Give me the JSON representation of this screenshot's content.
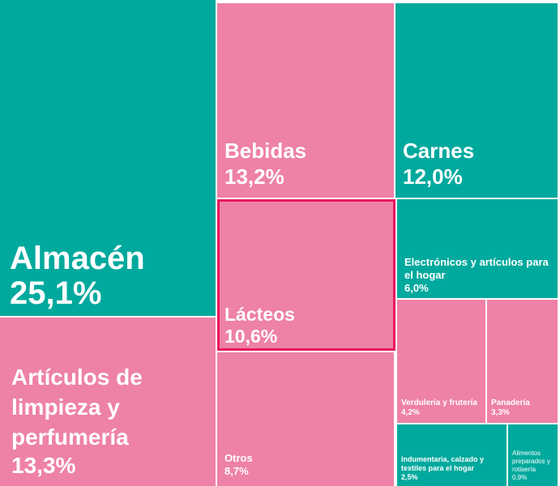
{
  "chart_data": {
    "type": "treemap",
    "title": "",
    "unit": "%",
    "colors": {
      "teal": "#00a99d",
      "pink": "#ee81a8",
      "highlight": "#e8175d"
    },
    "items": [
      {
        "label": "Almacén",
        "value": 25.1,
        "display": "25,1%",
        "color": "teal"
      },
      {
        "label": "Artículos de limpieza y perfumería",
        "value": 13.3,
        "display": "13,3%",
        "color": "pink"
      },
      {
        "label": "Bebidas",
        "value": 13.2,
        "display": "13,2%",
        "color": "pink"
      },
      {
        "label": "Lácteos",
        "value": 10.6,
        "display": "10,6%",
        "color": "pink",
        "highlighted": true
      },
      {
        "label": "Otros",
        "value": 8.7,
        "display": "8,7%",
        "color": "pink"
      },
      {
        "label": "Carnes",
        "value": 12.0,
        "display": "12,0%",
        "color": "teal"
      },
      {
        "label": "Electrónicos y artículos para el hogar",
        "value": 6.0,
        "display": "6,0%",
        "color": "teal"
      },
      {
        "label": "Verdulería y frutería",
        "value": 4.2,
        "display": "4,2%",
        "color": "pink"
      },
      {
        "label": "Panadería",
        "value": 3.3,
        "display": "3,3%",
        "color": "pink"
      },
      {
        "label": "Indumentaria, calzado y textiles para el hogar",
        "value": 2.5,
        "display": "2,5%",
        "color": "teal"
      },
      {
        "label": "Alimentos preparados y rotisería",
        "value": 0.9,
        "display": "0,9%",
        "color": "teal"
      }
    ]
  }
}
